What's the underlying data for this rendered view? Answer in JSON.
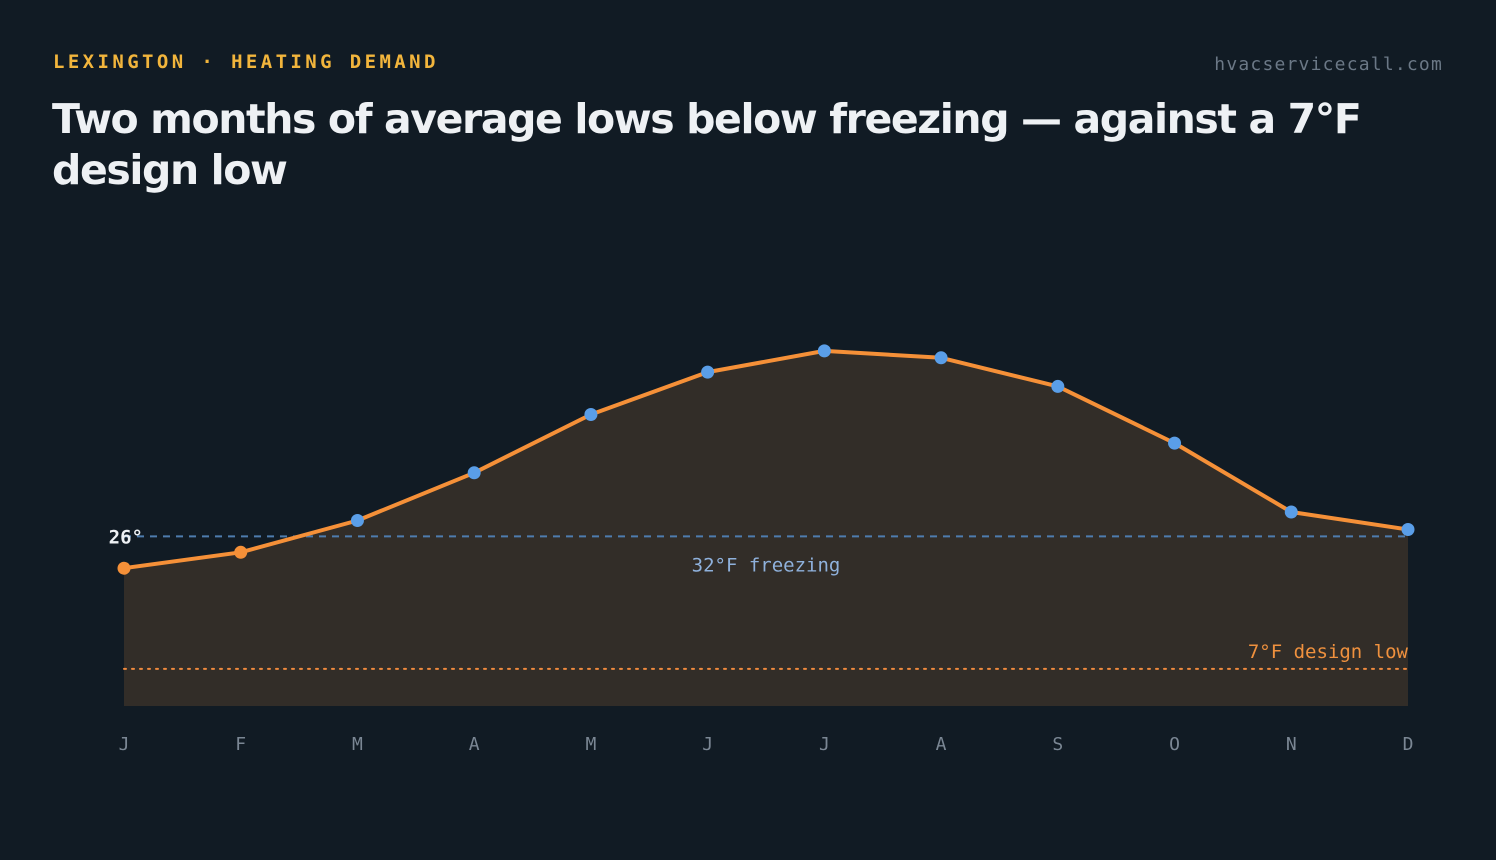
{
  "header": {
    "eyebrow": "LEXINGTON · HEATING DEMAND",
    "site": "hvacservicecall.com",
    "title": "Two months of average lows below freezing — against a 7°F design low"
  },
  "chart_data": {
    "type": "area",
    "title": "Two months of average lows below freezing — against a 7°F design low",
    "categories": [
      "J",
      "F",
      "M",
      "A",
      "M",
      "J",
      "J",
      "A",
      "S",
      "O",
      "N",
      "D"
    ],
    "series": [
      {
        "values": [
          26,
          29,
          35,
          44,
          55,
          63,
          67,
          65.7,
          60.3,
          49.6,
          36.6,
          33.3
        ]
      }
    ],
    "ylim": [
      0,
      95
    ],
    "start_label": "26°",
    "reference_lines": [
      {
        "value": 32,
        "label": "32°F freezing",
        "style": "dashed",
        "color": "#4e7cae"
      },
      {
        "value": 7,
        "label": "7°F design low",
        "style": "dotted",
        "color": "#f08a3e"
      }
    ],
    "colors": {
      "line": "#f59038",
      "point_above_freezing": "#5a9ee8",
      "point_below_freezing": "#f59038",
      "area_fill": "#322d28",
      "tick_label": "#7b8794",
      "freezing_label": "#8fb1dc",
      "design_label": "#f0913e"
    },
    "grid": false,
    "legend": "none"
  }
}
